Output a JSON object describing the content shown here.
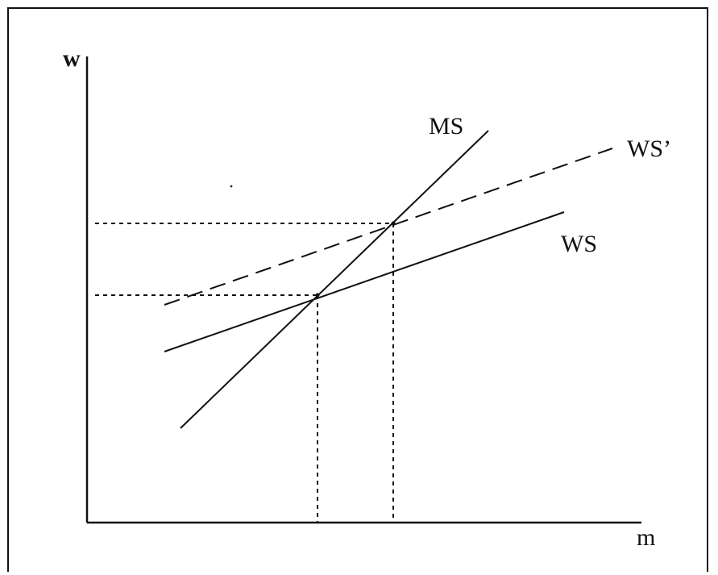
{
  "diagram": {
    "y_axis_label": "w",
    "x_axis_label": "m",
    "curves": {
      "ms": {
        "label": "MS",
        "style": "solid"
      },
      "ws_prime": {
        "label": "WS’",
        "style": "dashed"
      },
      "ws": {
        "label": "WS",
        "style": "solid"
      }
    },
    "equilibria": [
      {
        "between": [
          "MS",
          "WS"
        ],
        "guides": "dotted"
      },
      {
        "between": [
          "MS",
          "WS’"
        ],
        "guides": "dotted"
      }
    ],
    "colors": {
      "ink": "#111111",
      "background": "#ffffff"
    }
  }
}
